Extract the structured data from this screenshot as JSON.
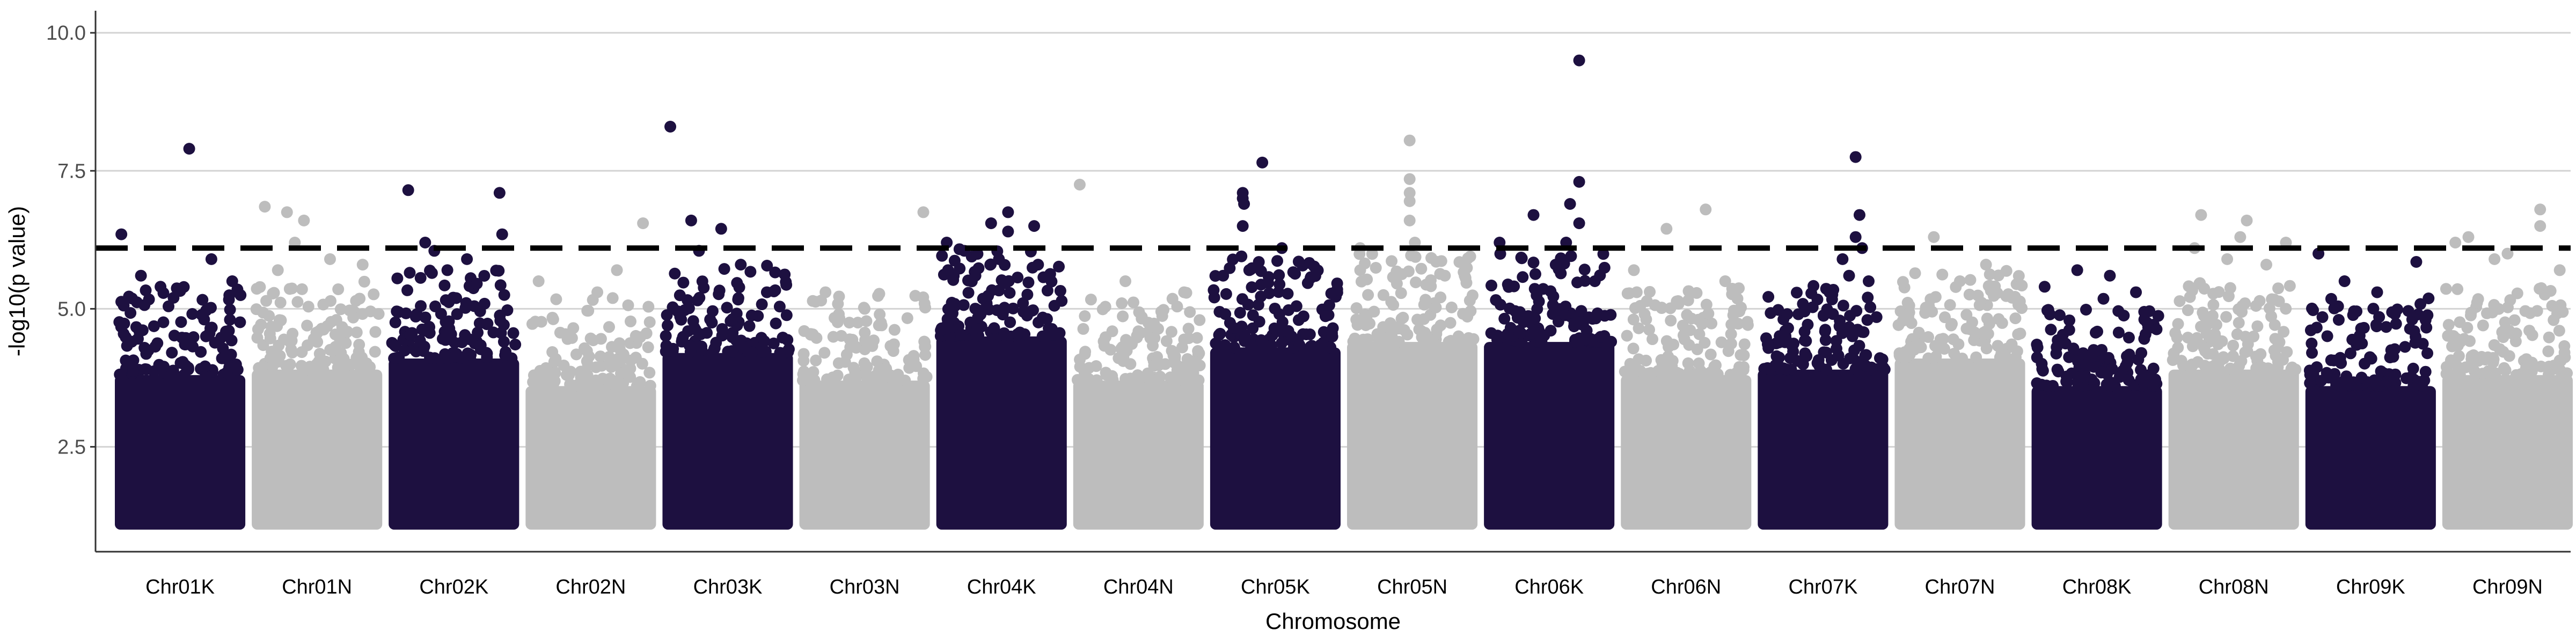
{
  "chart_data": {
    "type": "scatter",
    "title": "",
    "xlabel": "Chromosome",
    "ylabel": "-log10(p value)",
    "ylim": [
      0.6,
      10.4
    ],
    "yticks": [
      2.5,
      5.0,
      7.5,
      10.0
    ],
    "ytick_labels": [
      "2.5",
      "5.0",
      "7.5",
      "10.0"
    ],
    "threshold": 6.1,
    "grid": true,
    "legend": "none",
    "colors": {
      "dark": "#1d1040",
      "light": "#bdbdbd",
      "grid": "#d3d3d3",
      "threshold": "#000000"
    },
    "categories": [
      "Chr01K",
      "Chr01N",
      "Chr02K",
      "Chr02N",
      "Chr03K",
      "Chr03N",
      "Chr04K",
      "Chr04N",
      "Chr05K",
      "Chr05N",
      "Chr06K",
      "Chr06N",
      "Chr07K",
      "Chr07N",
      "Chr08K",
      "Chr08N",
      "Chr09K",
      "Chr09N"
    ],
    "series": [
      {
        "category": "Chr01K",
        "color_group": "dark",
        "bulk_top": 3.8,
        "peaks": [
          [
            0.05,
            6.35
          ],
          [
            0.57,
            7.9
          ],
          [
            0.74,
            5.9
          ],
          [
            0.2,
            5.6
          ],
          [
            0.35,
            5.4
          ],
          [
            0.9,
            5.5
          ],
          [
            0.45,
            5.2
          ]
        ]
      },
      {
        "category": "Chr01N",
        "color_group": "light",
        "bulk_top": 3.9,
        "peaks": [
          [
            0.1,
            6.85
          ],
          [
            0.27,
            6.75
          ],
          [
            0.4,
            6.6
          ],
          [
            0.33,
            6.2
          ],
          [
            0.6,
            5.9
          ],
          [
            0.85,
            5.8
          ],
          [
            0.2,
            5.7
          ]
        ]
      },
      {
        "category": "Chr02K",
        "color_group": "dark",
        "bulk_top": 4.1,
        "peaks": [
          [
            0.15,
            7.15
          ],
          [
            0.85,
            7.1
          ],
          [
            0.87,
            6.35
          ],
          [
            0.28,
            6.2
          ],
          [
            0.35,
            6.05
          ],
          [
            0.6,
            5.9
          ],
          [
            0.45,
            5.7
          ]
        ]
      },
      {
        "category": "Chr02N",
        "color_group": "light",
        "bulk_top": 3.6,
        "peaks": [
          [
            0.9,
            6.55
          ],
          [
            0.1,
            5.5
          ],
          [
            0.7,
            5.7
          ],
          [
            0.55,
            5.3
          ]
        ]
      },
      {
        "category": "Chr03K",
        "color_group": "dark",
        "bulk_top": 4.2,
        "peaks": [
          [
            0.06,
            8.3
          ],
          [
            0.22,
            6.6
          ],
          [
            0.45,
            6.45
          ],
          [
            0.28,
            6.05
          ],
          [
            0.6,
            5.8
          ],
          [
            0.8,
            5.3
          ]
        ]
      },
      {
        "category": "Chr03N",
        "color_group": "light",
        "bulk_top": 3.7,
        "peaks": [
          [
            0.95,
            6.75
          ],
          [
            0.2,
            5.3
          ],
          [
            0.5,
            5.0
          ]
        ]
      },
      {
        "category": "Chr04K",
        "color_group": "dark",
        "bulk_top": 4.5,
        "peaks": [
          [
            0.55,
            6.75
          ],
          [
            0.42,
            6.55
          ],
          [
            0.75,
            6.5
          ],
          [
            0.55,
            6.4
          ],
          [
            0.08,
            6.2
          ],
          [
            0.48,
            5.9
          ],
          [
            0.78,
            5.8
          ],
          [
            0.3,
            5.6
          ]
        ]
      },
      {
        "category": "Chr04N",
        "color_group": "light",
        "bulk_top": 3.7,
        "peaks": [
          [
            0.05,
            7.25
          ],
          [
            0.4,
            5.5
          ],
          [
            0.85,
            5.3
          ]
        ]
      },
      {
        "category": "Chr05K",
        "color_group": "dark",
        "bulk_top": 4.3,
        "peaks": [
          [
            0.4,
            7.65
          ],
          [
            0.25,
            7.1
          ],
          [
            0.25,
            7.0
          ],
          [
            0.26,
            6.9
          ],
          [
            0.25,
            6.5
          ],
          [
            0.55,
            6.1
          ],
          [
            0.24,
            5.95
          ],
          [
            0.3,
            5.7
          ],
          [
            0.1,
            5.6
          ]
        ]
      },
      {
        "category": "Chr05N",
        "color_group": "light",
        "bulk_top": 4.4,
        "peaks": [
          [
            0.48,
            8.05
          ],
          [
            0.48,
            7.35
          ],
          [
            0.48,
            7.1
          ],
          [
            0.48,
            6.95
          ],
          [
            0.48,
            6.6
          ],
          [
            0.1,
            6.1
          ],
          [
            0.52,
            6.2
          ],
          [
            0.75,
            5.6
          ]
        ]
      },
      {
        "category": "Chr06K",
        "color_group": "dark",
        "bulk_top": 4.4,
        "peaks": [
          [
            0.73,
            9.5
          ],
          [
            0.73,
            7.3
          ],
          [
            0.66,
            6.9
          ],
          [
            0.73,
            6.55
          ],
          [
            0.38,
            6.7
          ],
          [
            0.63,
            6.2
          ],
          [
            0.12,
            6.2
          ],
          [
            0.55,
            5.8
          ],
          [
            0.85,
            5.5
          ]
        ]
      },
      {
        "category": "Chr06N",
        "color_group": "light",
        "bulk_top": 3.8,
        "peaks": [
          [
            0.35,
            6.45
          ],
          [
            0.65,
            6.8
          ],
          [
            0.1,
            5.7
          ],
          [
            0.8,
            5.5
          ]
        ]
      },
      {
        "category": "Chr07K",
        "color_group": "dark",
        "bulk_top": 3.9,
        "peaks": [
          [
            0.75,
            7.75
          ],
          [
            0.78,
            6.7
          ],
          [
            0.75,
            6.3
          ],
          [
            0.8,
            6.1
          ],
          [
            0.65,
            5.9
          ],
          [
            0.7,
            5.6
          ],
          [
            0.85,
            5.5
          ],
          [
            0.55,
            5.3
          ]
        ]
      },
      {
        "category": "Chr07N",
        "color_group": "light",
        "bulk_top": 4.1,
        "peaks": [
          [
            0.3,
            6.3
          ],
          [
            0.7,
            5.8
          ],
          [
            0.5,
            5.5
          ],
          [
            0.9,
            5.2
          ]
        ]
      },
      {
        "category": "Chr08K",
        "color_group": "dark",
        "bulk_top": 3.6,
        "peaks": [
          [
            0.35,
            5.7
          ],
          [
            0.6,
            5.6
          ],
          [
            0.1,
            5.4
          ],
          [
            0.8,
            5.3
          ]
        ]
      },
      {
        "category": "Chr08N",
        "color_group": "light",
        "bulk_top": 3.9,
        "peaks": [
          [
            0.25,
            6.7
          ],
          [
            0.6,
            6.6
          ],
          [
            0.9,
            6.2
          ],
          [
            0.2,
            6.1
          ],
          [
            0.55,
            6.3
          ],
          [
            0.45,
            5.9
          ],
          [
            0.75,
            5.8
          ]
        ]
      },
      {
        "category": "Chr09K",
        "color_group": "dark",
        "bulk_top": 3.6,
        "peaks": [
          [
            0.1,
            6.0
          ],
          [
            0.85,
            5.85
          ],
          [
            0.3,
            5.5
          ],
          [
            0.55,
            5.3
          ]
        ]
      },
      {
        "category": "Chr09N",
        "color_group": "light",
        "bulk_top": 3.8,
        "peaks": [
          [
            0.75,
            6.8
          ],
          [
            0.75,
            6.5
          ],
          [
            0.1,
            6.2
          ],
          [
            0.2,
            6.3
          ],
          [
            0.5,
            6.0
          ],
          [
            0.4,
            5.9
          ],
          [
            0.9,
            5.7
          ]
        ]
      }
    ]
  }
}
